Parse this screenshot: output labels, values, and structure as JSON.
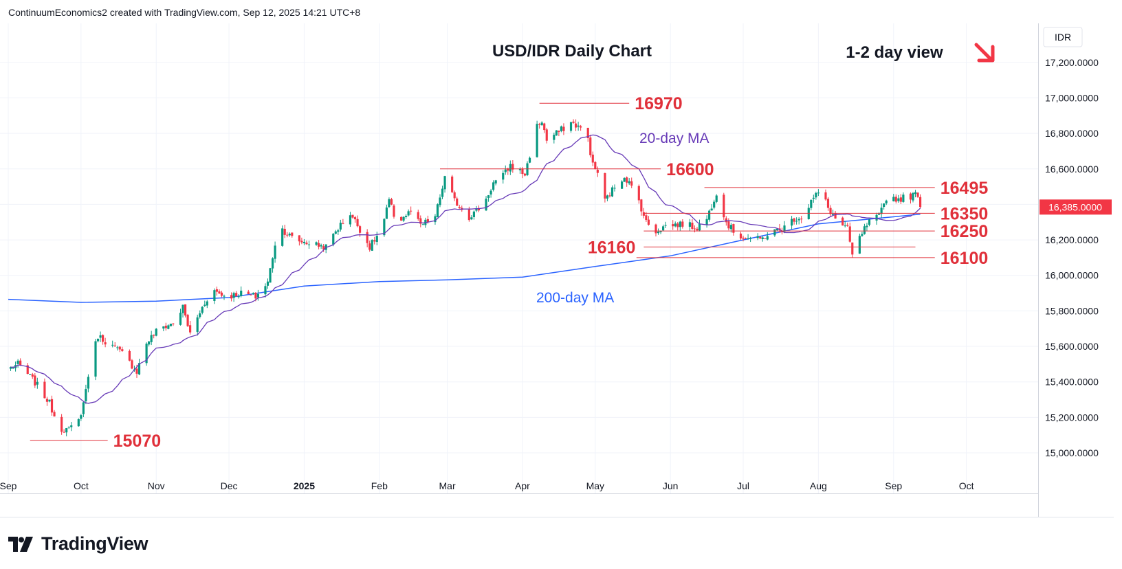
{
  "header": "ContinuumEconomics2 created with TradingView.com, Sep 12, 2025 14:21 UTC+8",
  "brand": "TradingView",
  "brand_logo_icon": "tradingview-logo-icon",
  "colors": {
    "up": "#089981",
    "down": "#f23645",
    "ma20": "#673ab7",
    "ma200": "#2962ff",
    "level": "#e0303a",
    "grid": "#f0f3fa"
  },
  "chart_data": {
    "type": "candlestick",
    "title": "USD/IDR Daily Chart",
    "subtitle": "1-2 day view",
    "direction_icon": "down-right-arrow-icon",
    "currency_label": "IDR",
    "last_price_label": "16,385.0000",
    "ylim": [
      14880,
      17420
    ],
    "y_ticks": [
      "15,000.0000",
      "15,200.0000",
      "15,400.0000",
      "15,600.0000",
      "15,800.0000",
      "16,000.0000",
      "16,200.0000",
      "16,400.0000",
      "16,600.0000",
      "16,800.0000",
      "17,000.0000",
      "17,200.0000"
    ],
    "y_tick_values": [
      15000,
      15200,
      15400,
      15600,
      15800,
      16000,
      16200,
      16400,
      16600,
      16800,
      17000,
      17200
    ],
    "x_ticks": [
      "Sep",
      "Oct",
      "Nov",
      "Dec",
      "2025",
      "Feb",
      "Mar",
      "Apr",
      "May",
      "Jun",
      "Jul",
      "Aug",
      "Sep",
      "Oct"
    ],
    "x_tick_dates": [
      "2024-09-01",
      "2024-10-01",
      "2024-11-01",
      "2024-12-01",
      "2025-01-01",
      "2025-02-01",
      "2025-03-01",
      "2025-04-01",
      "2025-05-01",
      "2025-06-01",
      "2025-07-01",
      "2025-08-01",
      "2025-09-01",
      "2025-10-01"
    ],
    "x_range": [
      "2024-09-01",
      "2025-10-15"
    ],
    "ma_labels": {
      "ma20": "20-day MA",
      "ma200": "200-day MA"
    },
    "levels": [
      {
        "label": "16970",
        "value": 16970,
        "from": "2025-04-08",
        "to": "2025-05-15"
      },
      {
        "label": "16600",
        "value": 16600,
        "from": "2025-02-26",
        "to": "2025-05-28"
      },
      {
        "label": "16495",
        "value": 16495,
        "from": "2025-06-15",
        "to": "2025-09-18"
      },
      {
        "label": "16350",
        "value": 16350,
        "from": "2025-05-21",
        "to": "2025-09-18"
      },
      {
        "label": "16250",
        "value": 16250,
        "from": "2025-05-21",
        "to": "2025-09-18"
      },
      {
        "label": "16160",
        "value": 16160,
        "from": "2025-05-21",
        "to": "2025-09-10"
      },
      {
        "label": "16100",
        "value": 16100,
        "from": "2025-05-18",
        "to": "2025-09-18"
      },
      {
        "label": "15070",
        "value": 15070,
        "from": "2024-09-10",
        "to": "2024-10-12"
      }
    ],
    "anchors": [
      [
        "2024-09-02",
        15480
      ],
      [
        "2024-09-05",
        15500
      ],
      [
        "2024-09-10",
        15430
      ],
      [
        "2024-09-13",
        15380
      ],
      [
        "2024-09-18",
        15280
      ],
      [
        "2024-09-22",
        15140
      ],
      [
        "2024-09-26",
        15130
      ],
      [
        "2024-09-30",
        15180
      ],
      [
        "2024-10-02",
        15280
      ],
      [
        "2024-10-05",
        15520
      ],
      [
        "2024-10-08",
        15660
      ],
      [
        "2024-10-12",
        15620
      ],
      [
        "2024-10-18",
        15560
      ],
      [
        "2024-10-24",
        15460
      ],
      [
        "2024-10-28",
        15620
      ],
      [
        "2024-11-02",
        15700
      ],
      [
        "2024-11-08",
        15730
      ],
      [
        "2024-11-12",
        15820
      ],
      [
        "2024-11-15",
        15670
      ],
      [
        "2024-11-20",
        15820
      ],
      [
        "2024-11-24",
        15920
      ],
      [
        "2024-11-30",
        15880
      ],
      [
        "2024-12-06",
        15900
      ],
      [
        "2024-12-12",
        15880
      ],
      [
        "2024-12-17",
        15960
      ],
      [
        "2024-12-20",
        16180
      ],
      [
        "2024-12-23",
        16260
      ],
      [
        "2024-12-28",
        16200
      ],
      [
        "2025-01-04",
        16180
      ],
      [
        "2025-01-10",
        16160
      ],
      [
        "2025-01-14",
        16250
      ],
      [
        "2025-01-20",
        16350
      ],
      [
        "2025-01-24",
        16260
      ],
      [
        "2025-01-28",
        16160
      ],
      [
        "2025-02-02",
        16260
      ],
      [
        "2025-02-05",
        16420
      ],
      [
        "2025-02-08",
        16300
      ],
      [
        "2025-02-14",
        16360
      ],
      [
        "2025-02-18",
        16280
      ],
      [
        "2025-02-24",
        16330
      ],
      [
        "2025-02-28",
        16550
      ],
      [
        "2025-03-04",
        16420
      ],
      [
        "2025-03-10",
        16330
      ],
      [
        "2025-03-16",
        16400
      ],
      [
        "2025-03-20",
        16520
      ],
      [
        "2025-03-24",
        16560
      ],
      [
        "2025-03-27",
        16620
      ],
      [
        "2025-04-02",
        16570
      ],
      [
        "2025-04-07",
        16840
      ],
      [
        "2025-04-09",
        16870
      ],
      [
        "2025-04-11",
        16760
      ],
      [
        "2025-04-16",
        16810
      ],
      [
        "2025-04-21",
        16860
      ],
      [
        "2025-04-24",
        16840
      ],
      [
        "2025-04-28",
        16770
      ],
      [
        "2025-04-30",
        16620
      ],
      [
        "2025-05-02",
        16580
      ],
      [
        "2025-05-05",
        16420
      ],
      [
        "2025-05-09",
        16500
      ],
      [
        "2025-05-13",
        16560
      ],
      [
        "2025-05-15",
        16520
      ],
      [
        "2025-05-19",
        16420
      ],
      [
        "2025-05-22",
        16300
      ],
      [
        "2025-05-26",
        16250
      ],
      [
        "2025-05-30",
        16280
      ],
      [
        "2025-06-06",
        16290
      ],
      [
        "2025-06-12",
        16270
      ],
      [
        "2025-06-16",
        16320
      ],
      [
        "2025-06-20",
        16470
      ],
      [
        "2025-06-24",
        16300
      ],
      [
        "2025-06-28",
        16230
      ],
      [
        "2025-07-03",
        16210
      ],
      [
        "2025-07-08",
        16200
      ],
      [
        "2025-07-12",
        16240
      ],
      [
        "2025-07-17",
        16260
      ],
      [
        "2025-07-22",
        16320
      ],
      [
        "2025-07-26",
        16330
      ],
      [
        "2025-07-29",
        16420
      ],
      [
        "2025-08-02",
        16480
      ],
      [
        "2025-08-05",
        16380
      ],
      [
        "2025-08-09",
        16300
      ],
      [
        "2025-08-13",
        16260
      ],
      [
        "2025-08-15",
        16110
      ],
      [
        "2025-08-19",
        16240
      ],
      [
        "2025-08-22",
        16300
      ],
      [
        "2025-08-26",
        16330
      ],
      [
        "2025-08-29",
        16440
      ],
      [
        "2025-09-03",
        16430
      ],
      [
        "2025-09-06",
        16440
      ],
      [
        "2025-09-09",
        16450
      ],
      [
        "2025-09-11",
        16460
      ],
      [
        "2025-09-12",
        16385
      ]
    ],
    "ma200_anchors": [
      [
        "2024-09-01",
        15865
      ],
      [
        "2024-10-01",
        15848
      ],
      [
        "2024-11-01",
        15855
      ],
      [
        "2024-12-01",
        15875
      ],
      [
        "2025-01-01",
        15940
      ],
      [
        "2025-02-01",
        15965
      ],
      [
        "2025-03-01",
        15975
      ],
      [
        "2025-04-01",
        15990
      ],
      [
        "2025-05-01",
        16050
      ],
      [
        "2025-06-01",
        16110
      ],
      [
        "2025-07-01",
        16200
      ],
      [
        "2025-08-01",
        16290
      ],
      [
        "2025-09-01",
        16330
      ],
      [
        "2025-09-12",
        16345
      ]
    ]
  }
}
